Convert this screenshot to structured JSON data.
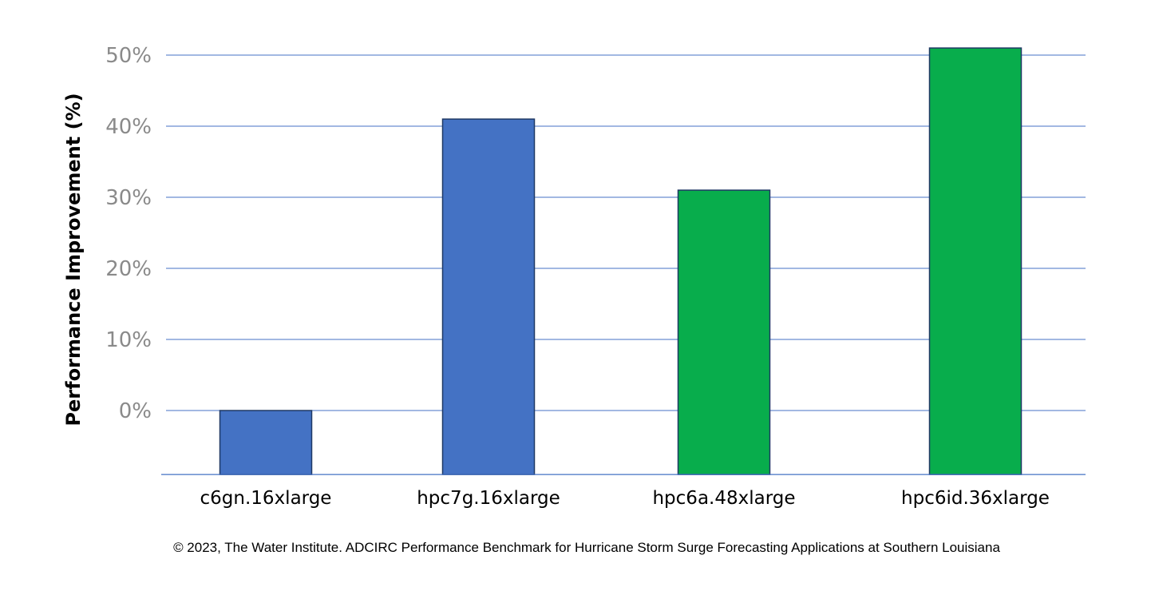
{
  "chart_data": {
    "type": "bar",
    "categories": [
      "c6gn.16xlarge",
      "hpc7g.16xlarge",
      "hpc6a.48xlarge",
      "hpc6id.36xlarge"
    ],
    "values": [
      0,
      41,
      31,
      51
    ],
    "bar_colors": [
      "#4472c4",
      "#4472c4",
      "#08ad4c",
      "#08ad4c"
    ],
    "bar_edge_color": "#1f3864",
    "ylabel": "Performance Improvement (%)",
    "xlabel": "",
    "ylim": [
      -9,
      50
    ],
    "yticks": [
      0,
      10,
      20,
      30,
      40,
      50
    ],
    "ytick_labels": [
      "0%",
      "10%",
      "20%",
      "30%",
      "40%",
      "50%"
    ],
    "grid": true,
    "grid_color": "#4472c4",
    "footer": "© 2023, The Water Institute. ADCIRC Performance Benchmark for Hurricane Storm Surge Forecasting Applications at Southern Louisiana"
  }
}
